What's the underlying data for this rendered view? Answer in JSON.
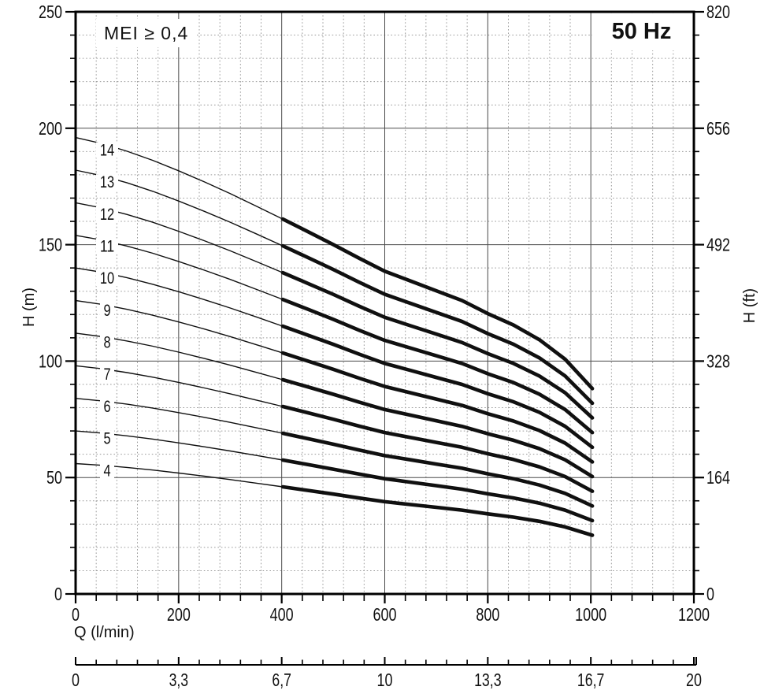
{
  "badges": {
    "mei": "MEI ≥ 0,4",
    "frequency": "50 Hz"
  },
  "axes": {
    "x": {
      "title": "Q (l/min)",
      "min": 0,
      "max": 1200,
      "major_step": 200,
      "minor_step": 40,
      "tick_labels": [
        "0",
        "200",
        "400",
        "600",
        "800",
        "1000",
        "1200"
      ]
    },
    "y_left": {
      "title": "H (m)",
      "min": 0,
      "max": 250,
      "major_step": 50,
      "minor_step": 10,
      "tick_labels": [
        "0",
        "50",
        "100",
        "150",
        "200",
        "250"
      ]
    },
    "y_right": {
      "title": "H (ft)",
      "min": 0,
      "max": 820,
      "tick_labels": [
        "0",
        "164",
        "328",
        "492",
        "656",
        "820"
      ]
    },
    "x_secondary": {
      "min": 0,
      "max": 20,
      "minor_divisions_per_label": 5,
      "tick_labels": [
        "0",
        "3,3",
        "6,7",
        "10",
        "13,3",
        "16,7",
        "20"
      ]
    }
  },
  "chart_data": {
    "type": "line",
    "title": "50 Hz",
    "annotation": "MEI ≥ 0,4",
    "xlabel": "Q (l/min)",
    "ylabel_left": "H (m)",
    "ylabel_right": "H (ft)",
    "xlim": [
      0,
      1200
    ],
    "ylim_m": [
      0,
      250
    ],
    "ylim_ft": [
      0,
      820
    ],
    "grid": "major solid 200 l/min × 50 m, minor dotted 40 l/min × 10 m",
    "legend_position": "labels on curves at left",
    "stages": [
      14,
      13,
      12,
      11,
      10,
      9,
      8,
      7,
      6,
      5,
      4
    ],
    "curve_rule": "H(Q) = stages × per_stage_head.h at same q",
    "per_stage_head": {
      "q_lmin": [
        0,
        50,
        100,
        150,
        200,
        250,
        300,
        350,
        402,
        450,
        500,
        550,
        600,
        650,
        700,
        750,
        800,
        850,
        900,
        950,
        1003
      ],
      "h_m": [
        14.0,
        13.82,
        13.58,
        13.3,
        12.98,
        12.64,
        12.28,
        11.9,
        11.5,
        11.12,
        10.72,
        10.3,
        9.9,
        9.6,
        9.3,
        9.0,
        8.6,
        8.25,
        7.8,
        7.2,
        6.3
      ]
    },
    "thin_segment_q": [
      0,
      402
    ],
    "thick_segment_q": [
      402,
      1003
    ],
    "curve_label_q": 62
  },
  "colors": {
    "curve": "#101010",
    "grid_major": "#4a4a4a",
    "grid_minor": "#9a9a9a",
    "axis": "#000000",
    "text": "#111111",
    "background": "#ffffff"
  }
}
